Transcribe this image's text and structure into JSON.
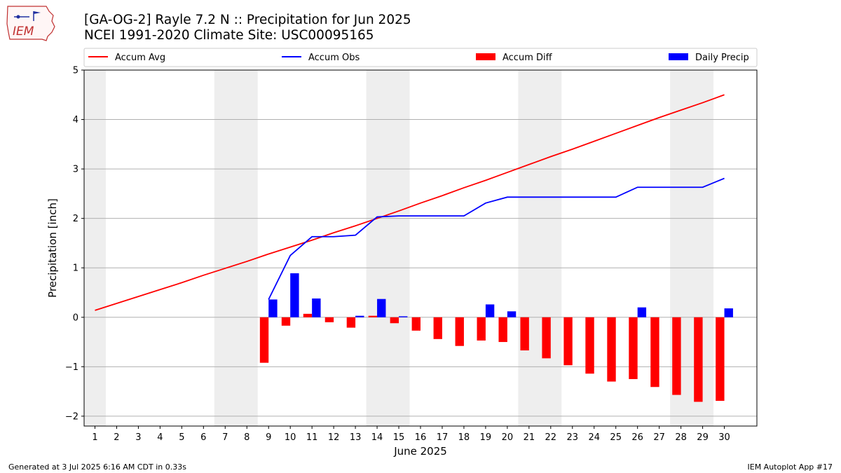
{
  "header": {
    "title_line1": "[GA-OG-2] Rayle 7.2 N :: Precipitation for Jun 2025",
    "title_line2": "NCEI 1991-2020 Climate Site: USC00095165"
  },
  "logo": {
    "text": "IEM"
  },
  "footer": {
    "generated": "Generated at 3 Jul 2025 6:16 AM CDT in 0.33s",
    "app": "IEM Autoplot App #17"
  },
  "colors": {
    "accum_avg": "#ff0000",
    "accum_obs": "#0000ff",
    "accum_diff": "#ff0000",
    "daily_precip": "#0000ff",
    "weekend_shade": "#eeeeee",
    "grid": "#b0b0b0"
  },
  "chart_data": {
    "type": "bar",
    "xlabel": "June 2025",
    "ylabel": "Precipitation [inch]",
    "ylim": [
      -2.2,
      5
    ],
    "yticks": [
      -2,
      -1,
      0,
      1,
      2,
      3,
      4,
      5
    ],
    "ytick_labels": [
      "−2",
      "−1",
      "0",
      "1",
      "2",
      "3",
      "4",
      "5"
    ],
    "xlim": [
      0.5,
      31.5
    ],
    "days": [
      1,
      2,
      3,
      4,
      5,
      6,
      7,
      8,
      9,
      10,
      11,
      12,
      13,
      14,
      15,
      16,
      17,
      18,
      19,
      20,
      21,
      22,
      23,
      24,
      25,
      26,
      27,
      28,
      29,
      30
    ],
    "weekend_shading": [
      [
        0.5,
        1.5
      ],
      [
        6.5,
        8.5
      ],
      [
        13.5,
        15.5
      ],
      [
        20.5,
        22.5
      ],
      [
        27.5,
        29.5
      ]
    ],
    "grid": "horizontal",
    "legend_position": "top",
    "series": [
      {
        "name": "Accum Avg",
        "kind": "line",
        "x": [
          1,
          2,
          3,
          4,
          5,
          6,
          7,
          8,
          9,
          10,
          11,
          12,
          13,
          14,
          15,
          16,
          17,
          18,
          19,
          20,
          21,
          22,
          23,
          24,
          25,
          26,
          27,
          28,
          29,
          30
        ],
        "values": [
          0.14,
          0.28,
          0.42,
          0.56,
          0.7,
          0.85,
          0.99,
          1.13,
          1.28,
          1.42,
          1.56,
          1.71,
          1.85,
          2.0,
          2.15,
          2.31,
          2.46,
          2.62,
          2.77,
          2.93,
          3.09,
          3.25,
          3.4,
          3.56,
          3.72,
          3.88,
          4.04,
          4.19,
          4.34,
          4.5
        ]
      },
      {
        "name": "Accum Obs",
        "kind": "line",
        "x": [
          9,
          10,
          11,
          12,
          13,
          14,
          15,
          16,
          17,
          18,
          19,
          20,
          21,
          22,
          23,
          24,
          25,
          26,
          27,
          28,
          29,
          30
        ],
        "values": [
          0.36,
          1.25,
          1.63,
          1.63,
          1.66,
          2.03,
          2.05,
          2.05,
          2.05,
          2.05,
          2.31,
          2.43,
          2.43,
          2.43,
          2.43,
          2.43,
          2.43,
          2.63,
          2.63,
          2.63,
          2.63,
          2.81
        ]
      },
      {
        "name": "Accum Diff",
        "kind": "bar",
        "offset": "left",
        "x": [
          9,
          10,
          11,
          12,
          13,
          14,
          15,
          16,
          17,
          18,
          19,
          20,
          21,
          22,
          23,
          24,
          25,
          26,
          27,
          28,
          29,
          30
        ],
        "values": [
          -0.92,
          -0.17,
          0.07,
          -0.1,
          -0.21,
          0.03,
          -0.12,
          -0.27,
          -0.44,
          -0.58,
          -0.47,
          -0.5,
          -0.67,
          -0.83,
          -0.97,
          -1.14,
          -1.3,
          -1.25,
          -1.41,
          -1.57,
          -1.71,
          -1.69
        ]
      },
      {
        "name": "Daily Precip",
        "kind": "bar",
        "offset": "right",
        "x": [
          9,
          10,
          11,
          12,
          13,
          14,
          15,
          16,
          17,
          18,
          19,
          20,
          21,
          22,
          23,
          24,
          25,
          26,
          27,
          28,
          29,
          30
        ],
        "values": [
          0.36,
          0.89,
          0.38,
          0,
          0.03,
          0.37,
          0.02,
          0,
          0,
          0,
          0.26,
          0.12,
          0,
          0,
          0,
          0,
          0,
          0.2,
          0,
          0,
          0,
          0.18
        ]
      }
    ]
  }
}
